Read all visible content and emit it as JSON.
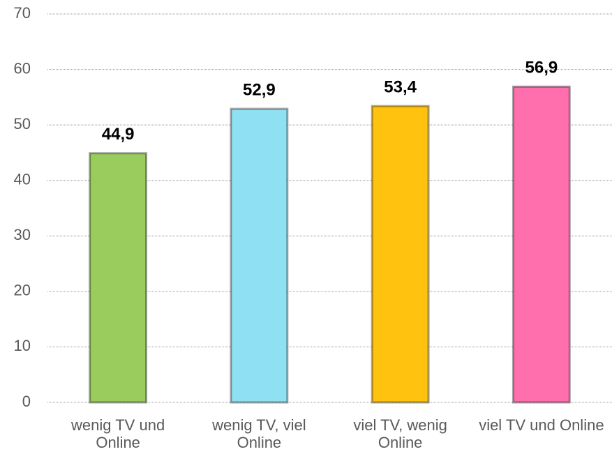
{
  "chart_data": {
    "type": "bar",
    "categories": [
      "wenig TV und Online",
      "wenig TV, viel Online",
      "viel TV, wenig Online",
      "viel TV und Online"
    ],
    "values": [
      44.9,
      52.9,
      53.4,
      56.9
    ],
    "value_labels": [
      "44,9",
      "52,9",
      "53,4",
      "56,9"
    ],
    "colors": [
      "#99cc5c",
      "#8fe0f2",
      "#ffc20e",
      "#ff6fae"
    ],
    "ylim": [
      0,
      70
    ],
    "yticks": [
      0,
      10,
      20,
      30,
      40,
      50,
      60,
      70
    ],
    "grid": true
  }
}
